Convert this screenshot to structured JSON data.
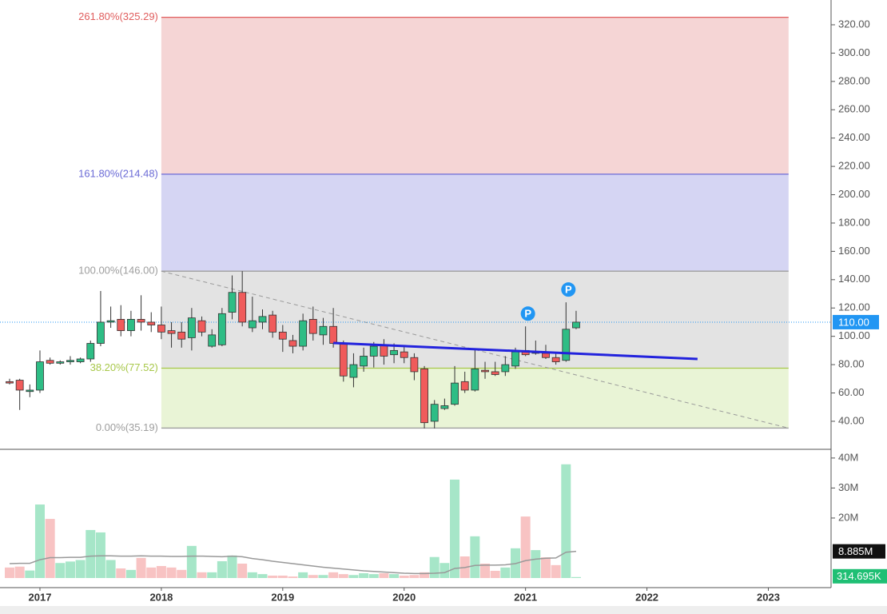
{
  "chart_data": {
    "type": "candlestick",
    "categories": [
      null,
      null,
      null,
      "2017",
      null,
      null,
      null,
      null,
      null,
      null,
      null,
      null,
      null,
      null,
      null,
      "2018",
      null,
      null,
      null,
      null,
      null,
      null,
      null,
      null,
      null,
      null,
      null,
      "2019",
      null,
      null,
      null,
      null,
      null,
      null,
      null,
      null,
      null,
      null,
      null,
      "2020",
      null,
      null,
      null,
      null,
      null,
      null,
      null,
      null,
      null,
      null,
      null,
      "2021",
      null,
      null,
      null,
      null,
      null,
      null,
      null,
      null,
      null,
      null,
      null,
      "2022",
      null,
      null,
      null,
      null,
      null,
      null,
      null,
      null,
      null,
      null,
      null,
      "2023",
      null,
      null,
      null,
      null,
      null,
      null
    ],
    "open": [
      68,
      69,
      61,
      62,
      83,
      81,
      82,
      82,
      84,
      95,
      110,
      112,
      104,
      112,
      110,
      108,
      104,
      103,
      99,
      111,
      93,
      94,
      117,
      131,
      106,
      110,
      115,
      103,
      97,
      93,
      112,
      101,
      107,
      95,
      71,
      79,
      86,
      94,
      87,
      89,
      85,
      77,
      40,
      49,
      52,
      68,
      62,
      76,
      75,
      75,
      79,
      90,
      88,
      88,
      85,
      83,
      106,
      null,
      null,
      null,
      null,
      null,
      null,
      null,
      null,
      null,
      null,
      null,
      null,
      null,
      null,
      null,
      null,
      null,
      null,
      null,
      null,
      null,
      null,
      null,
      null,
      null
    ],
    "high": [
      70,
      70,
      66,
      90,
      85,
      83,
      86,
      85,
      97,
      132,
      121,
      122,
      118,
      129,
      117,
      121,
      110,
      110,
      120,
      114,
      105,
      120,
      143,
      146,
      128,
      119,
      118,
      108,
      101,
      116,
      121,
      113,
      120,
      97,
      88,
      92,
      96,
      98,
      95,
      93,
      88,
      79,
      55,
      56,
      79,
      75,
      91,
      82,
      82,
      86,
      92,
      107,
      97,
      94,
      88,
      124,
      118,
      null,
      null,
      null,
      null,
      null,
      null,
      null,
      null,
      null,
      null,
      null,
      null,
      null,
      null,
      null,
      null,
      null,
      null,
      null,
      null,
      null,
      null,
      null,
      null,
      null
    ],
    "low": [
      66,
      48,
      57,
      60,
      80,
      80,
      80,
      81,
      82,
      93,
      106,
      100,
      100,
      104,
      103,
      98,
      92,
      92,
      90,
      100,
      92,
      93,
      112,
      107,
      103,
      105,
      99,
      89,
      88,
      90,
      97,
      94,
      92,
      68,
      64,
      75,
      78,
      80,
      81,
      81,
      69,
      35,
      35,
      48,
      51,
      60,
      61,
      70,
      72,
      72,
      77,
      86,
      87,
      84,
      80,
      82,
      105,
      null,
      null,
      null,
      null,
      null,
      null,
      null,
      null,
      null,
      null,
      null,
      null,
      null,
      null,
      null,
      null,
      null,
      null,
      null,
      null,
      null,
      null,
      null,
      null,
      null
    ],
    "close": [
      67,
      62,
      62,
      82,
      81,
      82,
      83,
      84,
      95,
      110,
      111,
      104,
      112,
      110,
      108,
      103,
      102,
      98,
      113,
      103,
      101,
      116,
      131,
      110,
      111,
      114,
      103,
      98,
      93,
      111,
      102,
      107,
      95,
      72,
      80,
      86,
      93,
      86,
      90,
      85,
      75,
      39,
      52,
      51,
      67,
      62,
      77,
      75,
      73,
      80,
      89,
      87,
      89,
      85,
      82,
      105,
      110,
      null,
      null,
      null,
      null,
      null,
      null,
      null,
      null,
      null,
      null,
      null,
      null,
      null,
      null,
      null,
      null,
      null,
      null,
      null,
      null,
      null,
      null,
      null,
      null,
      null
    ],
    "volume": [
      3.5,
      3.8,
      2.5,
      24.5,
      19.7,
      5,
      5.5,
      6,
      16,
      15.2,
      6,
      3.2,
      2.7,
      6.7,
      3.5,
      4,
      3.5,
      2.7,
      10.7,
      1.9,
      1.9,
      5.6,
      7.5,
      4.8,
      1.9,
      1.3,
      0.8,
      0.8,
      0.5,
      1.9,
      1,
      1,
      1.9,
      1.3,
      1,
      1.6,
      1.3,
      1.6,
      1.3,
      0.8,
      1,
      1.9,
      7,
      5,
      32.8,
      7.2,
      13.9,
      4.8,
      2.4,
      3.5,
      9.9,
      20.5,
      9.3,
      6.9,
      4.3,
      37.9,
      0.314695,
      null,
      null,
      null,
      null,
      null,
      null,
      null,
      null,
      null,
      null,
      null,
      null,
      null,
      null,
      null,
      null,
      null,
      null,
      null,
      null,
      null,
      null,
      null,
      null,
      null
    ],
    "volume_ma": [
      4.8,
      4.9,
      4.9,
      6.1,
      6.8,
      6.8,
      6.9,
      6.9,
      7.3,
      7.4,
      7.4,
      7.3,
      7.3,
      7.4,
      7.3,
      7.3,
      7.2,
      7.2,
      7.3,
      7.3,
      7.2,
      7.1,
      7.3,
      7.1,
      6.5,
      6.1,
      5.6,
      5.2,
      4.8,
      4.4,
      4,
      3.6,
      3.3,
      3,
      2.7,
      2.4,
      2.2,
      2,
      1.8,
      1.6,
      1.5,
      1.5,
      1.6,
      1.8,
      3.2,
      3.5,
      4.2,
      4.3,
      4.3,
      4.4,
      4.8,
      5.8,
      6.3,
      6.6,
      6.7,
      8.6,
      8.885,
      null,
      null,
      null,
      null,
      null,
      null,
      null,
      null,
      null,
      null,
      null,
      null,
      null,
      null,
      null,
      null,
      null,
      null,
      null,
      null,
      null,
      null,
      null,
      null,
      null
    ],
    "up_color": "#2ebd85",
    "down_color": "#f05b5b",
    "volume_up_color": "#a6e6c8",
    "volume_down_color": "#f8c3c3",
    "volume_ma_color": "#999999",
    "ylim": [
      20.2,
      337.5
    ],
    "yticks": [
      {
        "value": 40,
        "label": "40.00"
      },
      {
        "value": 60,
        "label": "60.00"
      },
      {
        "value": 80,
        "label": "80.00"
      },
      {
        "value": 100,
        "label": "100.00"
      },
      {
        "value": 120,
        "label": "120.00"
      },
      {
        "value": 140,
        "label": "140.00"
      },
      {
        "value": 160,
        "label": "160.00"
      },
      {
        "value": 180,
        "label": "180.00"
      },
      {
        "value": 200,
        "label": "200.00"
      },
      {
        "value": 220,
        "label": "220.00"
      },
      {
        "value": 240,
        "label": "240.00"
      },
      {
        "value": 260,
        "label": "260.00"
      },
      {
        "value": 280,
        "label": "280.00"
      },
      {
        "value": 300,
        "label": "300.00"
      },
      {
        "value": 320,
        "label": "320.00"
      }
    ],
    "volume_ylim": [
      -3.2,
      42.9
    ],
    "volume_yticks": [
      {
        "value": 20,
        "label": "20M"
      },
      {
        "value": 30,
        "label": "30M"
      },
      {
        "value": 40,
        "label": "40M"
      }
    ],
    "fib_levels": [
      {
        "label": "261.80%(325.29)",
        "value": 325.29,
        "color": "#e05d5d",
        "fill": "#f5d5d5"
      },
      {
        "label": "161.80%(214.48)",
        "value": 214.48,
        "color": "#6b6bd6",
        "fill": "#d5d5f3"
      },
      {
        "label": "100.00%(146.00)",
        "value": 146.0,
        "color": "#9e9e9e",
        "fill": "#e3e3e3"
      },
      {
        "label": "38.20%(77.52)",
        "value": 77.52,
        "color": "#a8c84a",
        "fill": "#e9f4d6"
      },
      {
        "label": "0.00%(35.19)",
        "value": 35.19,
        "color": "#9e9e9e"
      }
    ],
    "trendline": {
      "values": [
        95.3,
        84.0
      ],
      "color": "#2222dd"
    },
    "dashed_line": {
      "values": [
        146,
        35.19
      ],
      "color": "#999999"
    },
    "markers": [
      {
        "label": "P"
      },
      {
        "label": "P"
      }
    ],
    "current_price": {
      "value": 110,
      "label": "110.00",
      "color": "#2196f3"
    },
    "volume_ma_last": {
      "value": 8.885,
      "label": "8.885M"
    },
    "volume_last": {
      "value": 0.314695,
      "label": "314.695K"
    }
  }
}
